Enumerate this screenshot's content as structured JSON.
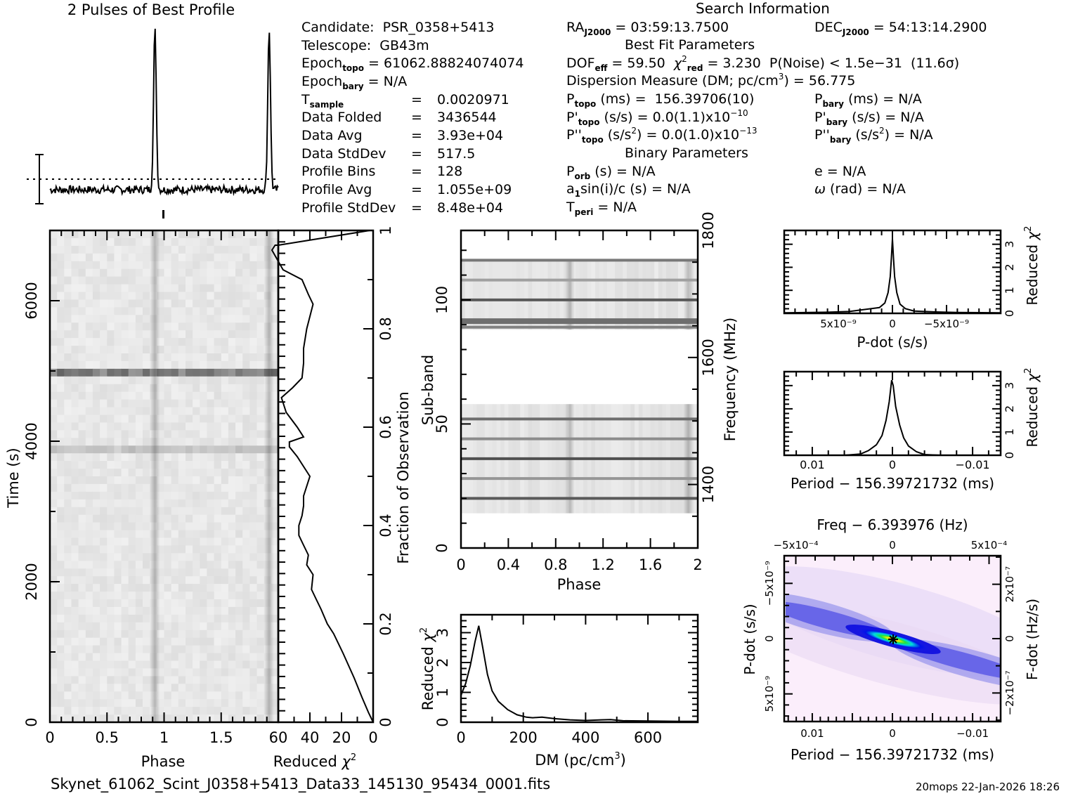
{
  "title_profile": "2 Pulses of Best Profile",
  "title_search": "Search Information",
  "filename": "Skynet_61062_Scint_J0358+5413_Data33_145130_95434_0001.fits",
  "footer_stamp": "20mops 22-Jan-2026 18:26",
  "info_left": {
    "candidate_label": "Candidate:",
    "candidate": "PSR_0358+5413",
    "telescope_label": "Telescope:",
    "telescope": "GB43m",
    "epoch_topo": "61062.88824074074",
    "epoch_bary": "N/A",
    "t_sample": "0.0020971",
    "data_folded": "3436544",
    "data_avg": "3.93e+04",
    "data_stddev": "517.5",
    "profile_bins": "128",
    "profile_avg": "1.055e+09",
    "profile_stddev": "8.48e+04"
  },
  "info_right": {
    "ra_j2000": "03:59:13.7500",
    "dec_j2000": "54:13:14.2900",
    "best_fit_header": "Best Fit Parameters",
    "dof_eff": "59.50",
    "chi2_red": "3.230",
    "p_noise": "1.5e−31",
    "sigma": "11.6σ",
    "dm_label": "Dispersion Measure (DM; pc/cm",
    "dm": "56.775",
    "p_topo": "156.39706(10)",
    "p_bary": "N/A",
    "pdot_topo_mant": "0.0(1.1)x10",
    "pdot_topo_exp": "−10",
    "pdot_bary": "N/A",
    "pddot_topo_mant": "0.0(1.0)x10",
    "pddot_topo_exp": "−13",
    "pddot_bary": "N/A",
    "binary_header": "Binary Parameters",
    "p_orb": "N/A",
    "a1sini_c": "N/A",
    "t_peri": "N/A",
    "e": "N/A",
    "omega": "N/A"
  },
  "chart_data": [
    {
      "id": "profile",
      "type": "line",
      "title": "2 Pulses of Best Profile",
      "xlabel": "",
      "ylabel": "",
      "xlim": [
        0,
        2
      ],
      "peaks_phase": [
        0.92,
        1.92
      ],
      "peak_height_rel": 1.0,
      "baseline_rel": 0.08,
      "mean_dotted_line_rel": 0.1,
      "errorbar": true
    },
    {
      "id": "time-phase",
      "type": "heatmap",
      "xlabel": "Phase",
      "ylabel": "Time (s)",
      "xlim": [
        0,
        2
      ],
      "ylim": [
        0,
        7000
      ],
      "xticks": [
        "0",
        "0.5",
        "1",
        "1.5"
      ],
      "yticks": [
        "0",
        "2000",
        "4000",
        "6000"
      ],
      "yticks_values": [
        0,
        2000,
        4000,
        6000
      ],
      "pulse_phase": [
        0.92,
        1.92
      ],
      "dark_rows_time": [
        5000,
        3900
      ],
      "colormap": "gray"
    },
    {
      "id": "time-chi2",
      "type": "line",
      "xlabel": "Reduced χ2",
      "ylabel": "Fraction of Observation",
      "xlim": [
        60,
        0
      ],
      "ylim": [
        0,
        1
      ],
      "xticks": [
        "60",
        "40",
        "20",
        "0"
      ],
      "yticks": [
        "0",
        "0.2",
        "0.4",
        "0.6",
        "0.8",
        "1"
      ],
      "x": [
        0,
        3,
        7,
        12,
        19,
        25,
        29,
        33,
        36,
        39,
        38,
        42,
        41,
        44,
        47,
        47,
        45,
        44,
        44,
        40,
        44,
        48,
        53,
        53,
        44,
        48,
        55,
        58,
        51,
        45,
        44,
        44,
        42,
        38,
        41,
        45,
        57,
        64,
        62,
        60,
        2
      ],
      "y": [
        0,
        0.02,
        0.05,
        0.09,
        0.14,
        0.18,
        0.2,
        0.23,
        0.25,
        0.27,
        0.3,
        0.32,
        0.34,
        0.36,
        0.38,
        0.4,
        0.42,
        0.44,
        0.46,
        0.5,
        0.52,
        0.54,
        0.56,
        0.57,
        0.58,
        0.6,
        0.63,
        0.66,
        0.68,
        0.7,
        0.73,
        0.76,
        0.8,
        0.85,
        0.87,
        0.9,
        0.92,
        0.96,
        0.97,
        0.97,
        1.0
      ]
    },
    {
      "id": "subband-phase",
      "type": "heatmap",
      "xlabel": "Phase",
      "ylabel": "Sub-band",
      "y2label": "Frequency (MHz)",
      "xlim": [
        0,
        2
      ],
      "ylim": [
        0,
        128
      ],
      "xticks": [
        "0",
        "0.4",
        "0.8",
        "1.2",
        "1.6",
        "2"
      ],
      "yticks": [
        "0",
        "50",
        "100"
      ],
      "y2ticks": [
        "1400",
        "1600",
        "1800"
      ],
      "y2lim": [
        1300,
        1800
      ],
      "band_ranges": [
        [
          14,
          58
        ],
        [
          88,
          116
        ]
      ],
      "dark_subbands": [
        20,
        28,
        36,
        44,
        52,
        89,
        92,
        100,
        108,
        116
      ],
      "pulse_phase": [
        0.92,
        1.92
      ],
      "colormap": "gray"
    },
    {
      "id": "dm-chi2",
      "type": "line",
      "xlabel": "DM (pc/cm3)",
      "ylabel": "Reduced χ2",
      "xlim": [
        0,
        760
      ],
      "ylim": [
        0,
        3.6
      ],
      "xticks": [
        "0",
        "200",
        "400",
        "600"
      ],
      "yticks": [
        "0",
        "1",
        "2",
        "3"
      ],
      "x": [
        0,
        15,
        30,
        45,
        57,
        70,
        85,
        100,
        120,
        150,
        180,
        210,
        230,
        260,
        300,
        350,
        400,
        450,
        480,
        520,
        600,
        700,
        760
      ],
      "y": [
        0.9,
        1.3,
        1.9,
        2.7,
        3.23,
        2.5,
        1.6,
        1.05,
        0.7,
        0.42,
        0.25,
        0.17,
        0.15,
        0.17,
        0.12,
        0.08,
        0.06,
        0.08,
        0.09,
        0.05,
        0.04,
        0.03,
        0.03
      ]
    },
    {
      "id": "pdot-chi2",
      "type": "line",
      "xlabel": "P-dot (s/s)",
      "ylabel": "Reduced χ2",
      "xlim": [
        1e-08,
        -1e-08
      ],
      "ylim": [
        0,
        3.6
      ],
      "xticks": [
        "5x10⁻⁹",
        "0",
        "−5x10⁻⁹"
      ],
      "xticks_values": [
        5e-09,
        0,
        -5e-09
      ],
      "yticks": [
        "0",
        "1",
        "2",
        "3"
      ],
      "x": [
        1e-08,
        6e-09,
        4e-09,
        2e-09,
        1.2e-09,
        7e-10,
        4e-10,
        2e-10,
        1e-10,
        0,
        -1e-10,
        -2e-10,
        -4e-10,
        -7e-10,
        -1.2e-09,
        -2e-09,
        -4e-09,
        -6e-09,
        -1e-08
      ],
      "y": [
        0.02,
        0.05,
        0.08,
        0.2,
        0.25,
        0.45,
        0.9,
        1.6,
        2.4,
        3.23,
        2.4,
        1.6,
        0.9,
        0.4,
        0.2,
        0.1,
        0.06,
        0.04,
        0.02
      ]
    },
    {
      "id": "period-chi2",
      "type": "line",
      "xlabel": "Period − 156.39721732 (ms)",
      "ylabel": "Reduced χ2",
      "xlim": [
        0.0135,
        -0.0135
      ],
      "ylim": [
        0,
        3.6
      ],
      "xticks": [
        "0.01",
        "0",
        "−0.01"
      ],
      "xticks_values": [
        0.01,
        0,
        -0.01
      ],
      "yticks": [
        "0",
        "1",
        "2",
        "3"
      ],
      "x": [
        0.0135,
        0.006,
        0.004,
        0.003,
        0.002,
        0.0013,
        0.0008,
        0.0004,
        0.0001,
        -0.0001,
        -0.0004,
        -0.0009,
        -0.0014,
        -0.002,
        -0.003,
        -0.004,
        -0.006,
        -0.0135
      ],
      "y": [
        0,
        0.0,
        0.05,
        0.2,
        0.45,
        0.85,
        1.5,
        2.3,
        3.23,
        3.0,
        2.1,
        1.3,
        0.75,
        0.4,
        0.15,
        0.03,
        0.0,
        0
      ]
    },
    {
      "id": "period-pdot",
      "type": "heatmap",
      "title": "Freq − 6.393976 (Hz)",
      "xlabel": "Period − 156.39721732 (ms)",
      "ylabel": "P-dot (s/s)",
      "y2label": "F-dot (Hz/s)",
      "xlim": [
        0.0135,
        -0.0135
      ],
      "ylim": [
        7.5e-09,
        -7.5e-09
      ],
      "xticks": [
        "0.01",
        "0",
        "−0.01"
      ],
      "x2ticks": [
        "−5x10⁻⁴",
        "0",
        "5x10⁻⁴"
      ],
      "yticks": [
        "5x10⁻⁹",
        "0",
        "−5x10⁻⁹"
      ],
      "y2ticks": [
        "−2x10⁻⁷",
        "0",
        "2x10⁻⁷"
      ],
      "best_fit_marker": [
        0,
        0
      ],
      "colormap": "white-pink-blue-cyan-green-yellow-red"
    }
  ]
}
